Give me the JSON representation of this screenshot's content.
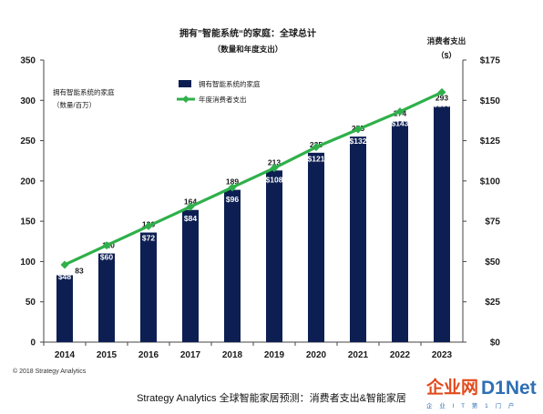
{
  "chart_data": {
    "type": "bar+line",
    "title": "拥有”智能系统“的家庭：全球总计",
    "subtitle": "（数量和年度支出）",
    "left_axis_label_line1": "拥有智能系统的家庭",
    "left_axis_label_line2": "（数量/百万）",
    "right_axis_label_line1": "消费者支出",
    "right_axis_label_line2": "（$）",
    "categories": [
      "2014",
      "2015",
      "2016",
      "2017",
      "2018",
      "2019",
      "2020",
      "2021",
      "2022",
      "2023"
    ],
    "series": [
      {
        "name": "拥有智能系统的家庭",
        "type": "bar",
        "axis": "left",
        "values": [
          83,
          110,
          136,
          164,
          189,
          213,
          235,
          255,
          274,
          293
        ],
        "labels": [
          "83",
          "110",
          "136",
          "164",
          "189",
          "213",
          "235",
          "255",
          "274",
          "293"
        ],
        "color": "#0d1f52"
      },
      {
        "name": "年度消费者支出",
        "type": "line",
        "axis": "right",
        "values": [
          48,
          60,
          72,
          84,
          96,
          108,
          121,
          132,
          143,
          155
        ],
        "labels": [
          "$48",
          "$60",
          "$72",
          "$84",
          "$96",
          "$108",
          "$121",
          "$132",
          "$143",
          "$155"
        ],
        "color": "#2fb04a"
      }
    ],
    "y_left": {
      "min": 0,
      "max": 350,
      "ticks": [
        0,
        50,
        100,
        150,
        200,
        250,
        300,
        350
      ]
    },
    "y_right": {
      "min": 0,
      "max": 175,
      "ticks": [
        0,
        25,
        50,
        75,
        100,
        125,
        150,
        175
      ],
      "tick_labels": [
        "$0",
        "$25",
        "$50",
        "$75",
        "$100",
        "$125",
        "$150",
        "$175"
      ]
    },
    "legend_position": "top-left",
    "grid": false,
    "copyright": "© 2018 Strategy Analytics"
  },
  "caption": "Strategy Analytics 全球智能家居预测：消费者支出&智能家居",
  "watermark": {
    "part1": "企业网",
    "part2": "D1Net",
    "tagline": "企 业 I T 第 1 门 户"
  }
}
